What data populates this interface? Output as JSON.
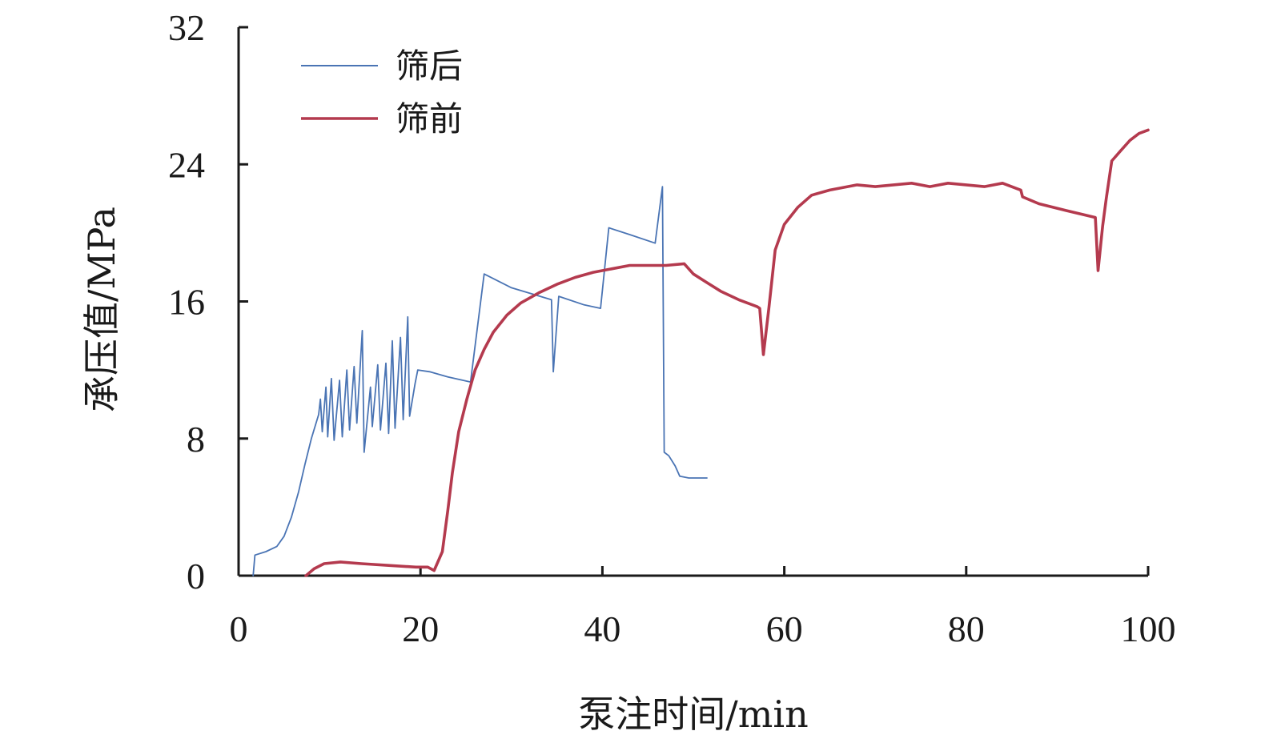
{
  "chart_data": {
    "type": "line",
    "xlabel": "泵注时间/min",
    "ylabel": "承压值/MPa",
    "xlim": [
      0,
      100
    ],
    "ylim": [
      0,
      32
    ],
    "x_ticks": [
      "0",
      "20",
      "40",
      "60",
      "80",
      "100"
    ],
    "y_ticks": [
      "0",
      "8",
      "16",
      "24",
      "32"
    ],
    "legend_position": "top-left",
    "series": [
      {
        "name": "筛后",
        "color": "#4a74b4",
        "points": [
          [
            1.6,
            0
          ],
          [
            1.8,
            1.2
          ],
          [
            3.0,
            1.4
          ],
          [
            4.2,
            1.7
          ],
          [
            5.0,
            2.3
          ],
          [
            5.8,
            3.4
          ],
          [
            6.6,
            4.9
          ],
          [
            7.3,
            6.5
          ],
          [
            8.0,
            8.0
          ],
          [
            8.8,
            9.4
          ],
          [
            9.0,
            10.3
          ],
          [
            9.2,
            8.4
          ],
          [
            9.6,
            11.0
          ],
          [
            9.8,
            8.1
          ],
          [
            10.2,
            11.5
          ],
          [
            10.5,
            7.9
          ],
          [
            11.1,
            11.4
          ],
          [
            11.4,
            8.1
          ],
          [
            11.9,
            12.0
          ],
          [
            12.2,
            8.5
          ],
          [
            12.7,
            12.2
          ],
          [
            13.0,
            8.9
          ],
          [
            13.6,
            14.3
          ],
          [
            13.8,
            7.2
          ],
          [
            14.5,
            11.0
          ],
          [
            14.7,
            8.7
          ],
          [
            15.3,
            12.3
          ],
          [
            15.6,
            8.5
          ],
          [
            16.2,
            12.4
          ],
          [
            16.5,
            8.3
          ],
          [
            16.9,
            13.7
          ],
          [
            17.2,
            8.6
          ],
          [
            17.8,
            13.9
          ],
          [
            18.1,
            9.1
          ],
          [
            18.6,
            15.1
          ],
          [
            18.8,
            9.3
          ],
          [
            19.4,
            11.2
          ],
          [
            19.7,
            12.0
          ],
          [
            21.0,
            11.9
          ],
          [
            23.0,
            11.6
          ],
          [
            25.5,
            11.3
          ],
          [
            27.0,
            17.6
          ],
          [
            30.0,
            16.8
          ],
          [
            34.4,
            16.1
          ],
          [
            34.6,
            11.9
          ],
          [
            35.2,
            16.3
          ],
          [
            38.0,
            15.8
          ],
          [
            39.8,
            15.6
          ],
          [
            40.7,
            20.3
          ],
          [
            43.0,
            19.9
          ],
          [
            45.8,
            19.4
          ],
          [
            46.6,
            22.7
          ],
          [
            46.8,
            7.2
          ],
          [
            47.3,
            7.0
          ],
          [
            48.0,
            6.4
          ],
          [
            48.5,
            5.8
          ],
          [
            49.5,
            5.7
          ],
          [
            51.5,
            5.7
          ]
        ]
      },
      {
        "name": "筛前",
        "color": "#b43a4e",
        "points": [
          [
            7.4,
            0
          ],
          [
            8.3,
            0.4
          ],
          [
            9.4,
            0.7
          ],
          [
            11.2,
            0.8
          ],
          [
            13.5,
            0.7
          ],
          [
            16.5,
            0.6
          ],
          [
            19.5,
            0.5
          ],
          [
            20.8,
            0.5
          ],
          [
            21.5,
            0.3
          ],
          [
            22.4,
            1.4
          ],
          [
            23.0,
            3.8
          ],
          [
            23.5,
            6.0
          ],
          [
            24.2,
            8.4
          ],
          [
            25.1,
            10.3
          ],
          [
            26.0,
            12.0
          ],
          [
            27.0,
            13.2
          ],
          [
            28.0,
            14.2
          ],
          [
            29.5,
            15.2
          ],
          [
            31.0,
            15.9
          ],
          [
            33.0,
            16.5
          ],
          [
            35.0,
            17.0
          ],
          [
            37.0,
            17.4
          ],
          [
            39.0,
            17.7
          ],
          [
            41.0,
            17.9
          ],
          [
            43.0,
            18.1
          ],
          [
            45.0,
            18.1
          ],
          [
            47.0,
            18.1
          ],
          [
            49.0,
            18.2
          ],
          [
            50.0,
            17.6
          ],
          [
            51.5,
            17.1
          ],
          [
            53.0,
            16.6
          ],
          [
            55.0,
            16.1
          ],
          [
            57.0,
            15.7
          ],
          [
            57.3,
            15.6
          ],
          [
            57.7,
            12.9
          ],
          [
            58.3,
            15.6
          ],
          [
            59.0,
            19.0
          ],
          [
            60.0,
            20.5
          ],
          [
            61.5,
            21.5
          ],
          [
            63.0,
            22.2
          ],
          [
            65.0,
            22.5
          ],
          [
            68.0,
            22.8
          ],
          [
            70.0,
            22.7
          ],
          [
            72.0,
            22.8
          ],
          [
            74.0,
            22.9
          ],
          [
            76.0,
            22.7
          ],
          [
            78.0,
            22.9
          ],
          [
            80.0,
            22.8
          ],
          [
            82.0,
            22.7
          ],
          [
            84.0,
            22.9
          ],
          [
            86.0,
            22.5
          ],
          [
            86.2,
            22.1
          ],
          [
            88.0,
            21.7
          ],
          [
            91.0,
            21.3
          ],
          [
            94.2,
            20.9
          ],
          [
            94.5,
            17.8
          ],
          [
            95.0,
            20.4
          ],
          [
            95.4,
            22.0
          ],
          [
            96.0,
            24.2
          ],
          [
            97.0,
            24.8
          ],
          [
            98.0,
            25.4
          ],
          [
            99.0,
            25.8
          ],
          [
            100.0,
            26.0
          ]
        ]
      }
    ]
  }
}
